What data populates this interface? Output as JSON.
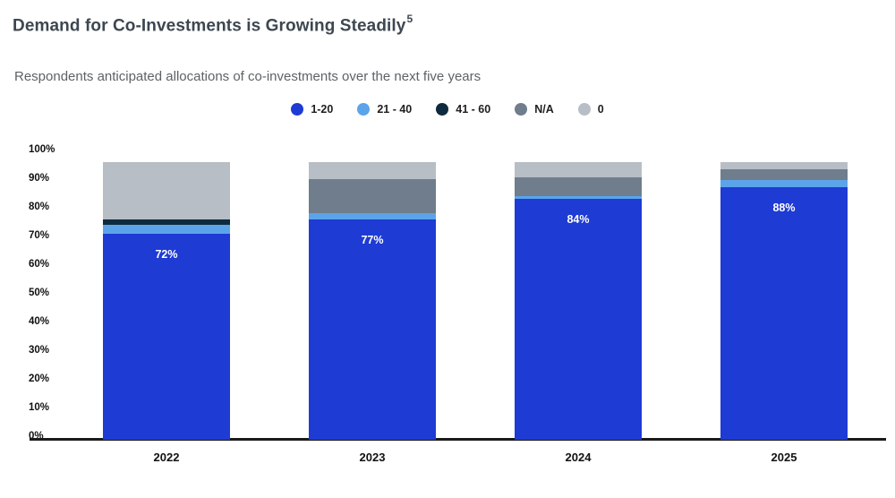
{
  "page": {
    "title": "Demand for Co-Investments is Growing Steadily",
    "title_superscript": "5",
    "subtitle": "Respondents anticipated allocations of co-investments over the next five years"
  },
  "chart_data": {
    "type": "bar",
    "stacked": true,
    "title": "Respondents anticipated allocations of co-investments over the next five years",
    "categories": [
      "2022",
      "2023",
      "2024",
      "2025"
    ],
    "series": [
      {
        "name": "1-20",
        "color": "#1e3bd4",
        "values": [
          72,
          77,
          84,
          88
        ]
      },
      {
        "name": "21 - 40",
        "color": "#5ca4ea",
        "values": [
          3,
          2,
          1,
          2.5
        ]
      },
      {
        "name": "41 - 60",
        "color": "#0e2a3e",
        "values": [
          2,
          0,
          0,
          0
        ]
      },
      {
        "name": "N/A",
        "color": "#6f7d8c",
        "values": [
          0,
          12,
          6.5,
          4
        ]
      },
      {
        "name": "0",
        "color": "#b8bec6",
        "values": [
          20,
          6,
          5.5,
          2.5
        ]
      }
    ],
    "bar_value_labels": [
      "72%",
      "77%",
      "84%",
      "88%"
    ],
    "y_ticks": [
      "0%",
      "10%",
      "20%",
      "30%",
      "40%",
      "50%",
      "60%",
      "70%",
      "80%",
      "90%",
      "100%"
    ],
    "ylim": [
      0,
      100
    ],
    "grid": false,
    "legend_position": "top-center",
    "axis_color": "#1a1a1a"
  }
}
